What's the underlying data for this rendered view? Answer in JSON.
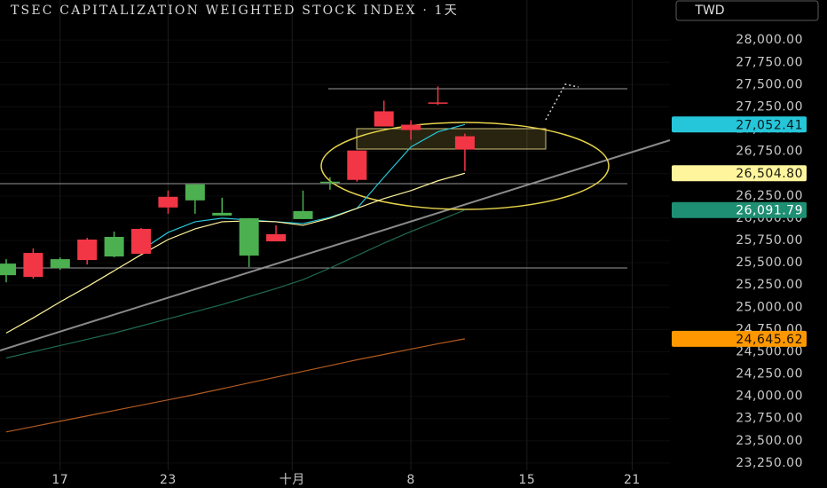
{
  "chart_data": {
    "type": "candlestick",
    "title": "TSEC CAPITALIZATION WEIGHTED STOCK INDEX  ·  1天",
    "currency": "TWD",
    "x": [
      0,
      1,
      2,
      3,
      4,
      5,
      6,
      7,
      8,
      9,
      10,
      11,
      12,
      13,
      14,
      15,
      16,
      17
    ],
    "open": [
      25360,
      25610,
      25440,
      25760,
      25570,
      25880,
      26240,
      26200,
      26030,
      25580,
      25820,
      25990,
      26400,
      26760,
      27200,
      27050,
      27300,
      26920
    ],
    "high": [
      25540,
      25660,
      25560,
      25780,
      25850,
      25890,
      26310,
      26380,
      26230,
      26000,
      25920,
      26310,
      26460,
      26760,
      27320,
      27100,
      27480,
      26950
    ],
    "low": [
      25280,
      25320,
      25420,
      25480,
      25560,
      25600,
      26050,
      26050,
      26030,
      25450,
      25740,
      25990,
      26320,
      26410,
      27030,
      26880,
      27270,
      26530
    ],
    "close": [
      25490,
      25340,
      25540,
      25530,
      25790,
      25600,
      26120,
      26380,
      26060,
      26000,
      25740,
      26080,
      26410,
      26430,
      27030,
      26990,
      27290,
      26770
    ],
    "up_color": "#4caf50",
    "down_color": "#f23645",
    "series": [
      {
        "color": "#26c6da",
        "values": [
          null,
          null,
          null,
          null,
          null,
          25640,
          25840,
          25960,
          26000,
          25980,
          25960,
          25940,
          26010,
          26110,
          26460,
          26800,
          26970,
          27052.41
        ]
      },
      {
        "color": "#fff59d",
        "values": [
          24710,
          24880,
          25060,
          25230,
          25410,
          25590,
          25760,
          25880,
          25960,
          25970,
          25960,
          25920,
          26000,
          26110,
          26220,
          26310,
          26420,
          26504.8
        ]
      },
      {
        "color": "#1f6b52",
        "values": [
          24430,
          24500,
          24570,
          24640,
          24710,
          24790,
          24870,
          24950,
          25030,
          25120,
          25210,
          25310,
          25440,
          25580,
          25720,
          25850,
          25970,
          26091.79
        ]
      },
      {
        "color": "#b35a1f",
        "values": [
          23600,
          23660,
          23720,
          23780,
          23840,
          23900,
          23960,
          24020,
          24085,
          24150,
          24215,
          24280,
          24345,
          24410,
          24470,
          24530,
          24590,
          24645.62
        ]
      }
    ],
    "price_tags": [
      {
        "value": 27052.41,
        "label": "27,052.41",
        "color": "#26c6da",
        "text_color": "#0b1a1c"
      },
      {
        "value": 26504.8,
        "label": "26,504.80",
        "color": "#fff59d",
        "text_color": "#1a1a10"
      },
      {
        "value": 26091.79,
        "label": "26,091.79",
        "color": "#1f8f73",
        "text_color": "#ffffff"
      },
      {
        "value": 24645.62,
        "label": "24,645.62",
        "color": "#ff9800",
        "text_color": "#1a1000"
      }
    ],
    "xlim": [
      -0.23,
      24.6
    ],
    "xticks": [
      {
        "value": 2,
        "label": "17"
      },
      {
        "value": 6,
        "label": "23"
      },
      {
        "value": 10.6,
        "label": "十月"
      },
      {
        "value": 15,
        "label": "8"
      },
      {
        "value": 19.3,
        "label": "15"
      },
      {
        "value": 23.2,
        "label": "21"
      }
    ],
    "ylim": [
      23070,
      28450
    ],
    "yticks": [
      {
        "value": 23250,
        "label": "23,250.00"
      },
      {
        "value": 23500,
        "label": "23,500.00"
      },
      {
        "value": 23750,
        "label": "23,750.00"
      },
      {
        "value": 24000,
        "label": "24,000.00"
      },
      {
        "value": 24250,
        "label": "24,250.00"
      },
      {
        "value": 24500,
        "label": "24,500.00"
      },
      {
        "value": 24750,
        "label": "24,750.00"
      },
      {
        "value": 25000,
        "label": "25,000.00"
      },
      {
        "value": 25250,
        "label": "25,250.00"
      },
      {
        "value": 25500,
        "label": "25,500.00"
      },
      {
        "value": 25750,
        "label": "25,750.00"
      },
      {
        "value": 26000,
        "label": "26,000.00"
      },
      {
        "value": 26250,
        "label": "26,250.00"
      },
      {
        "value": 26500,
        "label": "26,500.00"
      },
      {
        "value": 26750,
        "label": "26,750.00"
      },
      {
        "value": 27000,
        "label": "27,000.00"
      },
      {
        "value": 27250,
        "label": "27,250.00"
      },
      {
        "value": 27500,
        "label": "27,500.00"
      },
      {
        "value": 27750,
        "label": "27,750.00"
      },
      {
        "value": 28000,
        "label": "28,000.00"
      }
    ]
  }
}
